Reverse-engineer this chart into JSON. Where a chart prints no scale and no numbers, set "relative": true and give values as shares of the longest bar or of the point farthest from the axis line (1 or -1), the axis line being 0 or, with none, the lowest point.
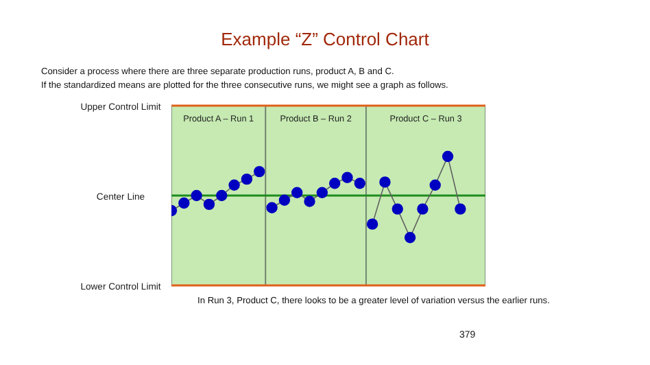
{
  "chart_data": {
    "type": "line",
    "title": "Example “Z” Control Chart",
    "annotations": [
      "Consider a process where there are three separate production runs, product A, B and C.",
      "If the standardized means are plotted for the three consecutive runs, we might see a graph as follows.",
      "In Run 3, Product C, there looks to be a greater level of variation versus the earlier runs.",
      "379",
      "Product A – Run 1",
      "Product B – Run 2",
      "Product C – Run 3"
    ],
    "categories": [
      null,
      null,
      null,
      null,
      null,
      null,
      null,
      null,
      null,
      null,
      null,
      null,
      null,
      null,
      null,
      null,
      null,
      null,
      null,
      null,
      null,
      null,
      null,
      null,
      null,
      null
    ],
    "relative": true,
    "series": [
      {
        "color": "#606060",
        "colors": [
          "#0000c0",
          "#0000c0",
          "#0000c0",
          "#0000c0",
          "#0000c0",
          "#0000c0",
          "#0000c0",
          "#0000c0",
          null,
          null,
          null,
          null,
          null,
          null,
          null,
          null,
          null,
          null,
          null,
          null,
          null,
          null,
          null,
          null,
          null,
          null
        ],
        "values": [
          -0.36,
          -0.18,
          0,
          -0.21,
          0,
          0.25,
          0.39,
          0.57,
          null,
          null,
          null,
          null,
          null,
          null,
          null,
          null,
          null,
          null,
          null,
          null,
          null,
          null,
          null,
          null,
          null,
          null
        ]
      },
      {
        "color": "#606060",
        "colors": [
          null,
          null,
          null,
          null,
          null,
          null,
          null,
          null,
          "#0000c0",
          "#0000c0",
          "#0000c0",
          "#0000c0",
          "#0000c0",
          "#0000c0",
          "#0000c0",
          "#0000c0",
          null,
          null,
          null,
          null,
          null,
          null,
          null,
          null,
          null,
          null
        ],
        "values": [
          null,
          null,
          null,
          null,
          null,
          null,
          null,
          null,
          -0.29,
          -0.11,
          0.07,
          -0.14,
          0.07,
          0.29,
          0.43,
          0.29,
          null,
          null,
          null,
          null,
          null,
          null,
          null,
          null,
          null,
          null
        ]
      },
      {
        "color": "#606060",
        "colors": [
          null,
          null,
          null,
          null,
          null,
          null,
          null,
          null,
          null,
          null,
          null,
          null,
          null,
          null,
          null,
          null,
          "#0000c0",
          "#0000c0",
          "#0000c0",
          "#0000c0",
          "#0000c0",
          "#0000c0",
          "#0000c0",
          "#0000c0",
          null,
          null
        ],
        "values": [
          null,
          null,
          null,
          null,
          null,
          null,
          null,
          null,
          null,
          null,
          null,
          null,
          null,
          null,
          null,
          null,
          -0.68,
          0.32,
          -0.32,
          -1,
          -0.32,
          0.25,
          0.93,
          -0.32,
          null,
          null
        ]
      }
    ],
    "ref_lines": [
      {
        "axis": "y",
        "value": 2.14,
        "label": "Upper Control Limit",
        "color": "#e0601a"
      },
      {
        "axis": "y",
        "value": 0,
        "label": "Center Line",
        "color": "#1e8c1e"
      },
      {
        "axis": "y",
        "value": -2.14,
        "label": "Lower Control Limit",
        "color": "#e0601a"
      }
    ],
    "marker": "circle",
    "grid": false,
    "legend": false
  }
}
